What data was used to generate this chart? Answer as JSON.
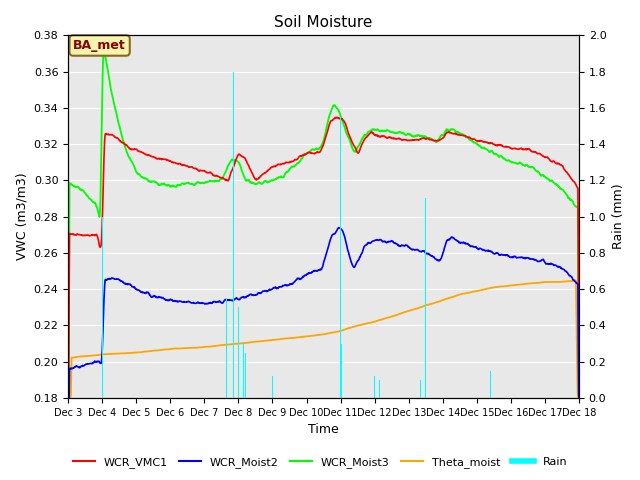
{
  "title": "Soil Moisture",
  "xlabel": "Time",
  "ylabel_left": "VWC (m3/m3)",
  "ylabel_right": "Rain (mm)",
  "ylim_left": [
    0.18,
    0.38
  ],
  "ylim_right": [
    0.0,
    2.0
  ],
  "yticks_left": [
    0.18,
    0.2,
    0.22,
    0.24,
    0.26,
    0.28,
    0.3,
    0.32,
    0.34,
    0.36,
    0.38
  ],
  "yticks_right": [
    0.0,
    0.2,
    0.4,
    0.6,
    0.8,
    1.0,
    1.2,
    1.4,
    1.6,
    1.8,
    2.0
  ],
  "background_color": "#e8e8e8",
  "grid_color": "#ffffff",
  "legend_labels": [
    "WCR_VMC1",
    "WCR_Moist2",
    "WCR_Moist3",
    "Theta_moist",
    "Rain"
  ],
  "line_colors": [
    "red",
    "blue",
    "#00ff00",
    "orange",
    "cyan"
  ],
  "annotation_text": "BA_met",
  "annotation_box_color": "#f5f5b0",
  "annotation_box_edge": "#8B6914",
  "tick_labels": [
    "Dec 3",
    "Dec 4",
    "Dec 5",
    "Dec 6",
    "Dec 7",
    "Dec 8",
    "Dec 9",
    "Dec 10",
    "Dec 11",
    "Dec 12",
    "Dec 13",
    "Dec 14",
    "Dec 15",
    "Dec 16",
    "Dec 17",
    "Dec 18"
  ]
}
